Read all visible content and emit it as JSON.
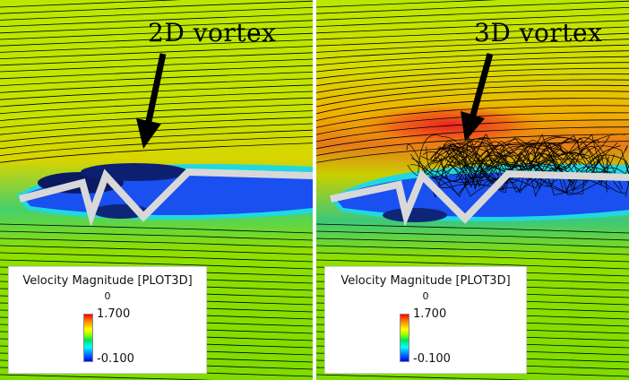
{
  "left_panel": {
    "label": "2D vortex"
  },
  "right_panel": {
    "label": "3D vortex"
  },
  "legend": {
    "title": "Velocity Magnitude [PLOT3D]",
    "zero": "0",
    "max": "1.700",
    "min": "-0.100"
  },
  "colors": {
    "freestream": "#8fe000",
    "high_speed": "#f07018",
    "low_speed": "#1850f0",
    "streamline": "#000000",
    "wing": "#d0d0d0"
  }
}
